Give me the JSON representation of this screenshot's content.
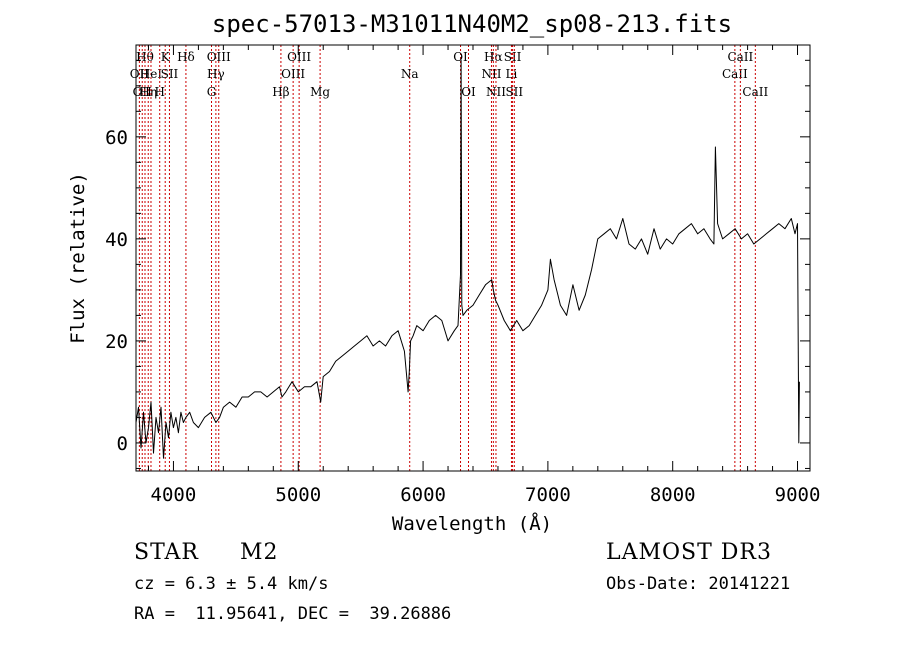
{
  "chart_data": {
    "type": "line",
    "title": "spec-57013-M31011N40M2_sp08-213.fits",
    "xlabel": "Wavelength (Å)",
    "ylabel": "Flux (relative)",
    "xlim": [
      3700,
      9100
    ],
    "ylim": [
      -5.5,
      78
    ],
    "xticks": [
      4000,
      5000,
      6000,
      7000,
      8000,
      9000
    ],
    "yticks": [
      0,
      20,
      40,
      60
    ],
    "series": [
      {
        "name": "flux",
        "x": [
          3700,
          3720,
          3740,
          3760,
          3780,
          3800,
          3820,
          3840,
          3860,
          3880,
          3900,
          3920,
          3940,
          3960,
          3980,
          4000,
          4020,
          4040,
          4060,
          4080,
          4100,
          4130,
          4160,
          4200,
          4250,
          4300,
          4340,
          4370,
          4400,
          4450,
          4500,
          4550,
          4600,
          4650,
          4700,
          4750,
          4800,
          4850,
          4870,
          4900,
          4950,
          5000,
          5050,
          5100,
          5150,
          5180,
          5200,
          5250,
          5300,
          5350,
          5400,
          5450,
          5500,
          5550,
          5600,
          5650,
          5700,
          5750,
          5800,
          5850,
          5880,
          5890,
          5900,
          5920,
          5950,
          6000,
          6050,
          6100,
          6150,
          6200,
          6250,
          6280,
          6300,
          6305,
          6310,
          6320,
          6350,
          6400,
          6450,
          6500,
          6550,
          6563,
          6580,
          6600,
          6650,
          6700,
          6750,
          6800,
          6850,
          6900,
          6950,
          7000,
          7020,
          7050,
          7080,
          7100,
          7150,
          7200,
          7250,
          7300,
          7350,
          7400,
          7450,
          7500,
          7550,
          7600,
          7650,
          7700,
          7750,
          7800,
          7850,
          7900,
          7950,
          8000,
          8050,
          8100,
          8150,
          8200,
          8250,
          8300,
          8330,
          8342,
          8360,
          8400,
          8450,
          8500,
          8550,
          8600,
          8650,
          8700,
          8750,
          8800,
          8850,
          8900,
          8950,
          8980,
          9000,
          9010,
          9015
        ],
        "values": [
          4,
          7,
          -1,
          6,
          0,
          3,
          8,
          -2,
          5,
          2,
          7,
          -3,
          4,
          1,
          6,
          3,
          5,
          2,
          6,
          4,
          5,
          6,
          4,
          3,
          5,
          6,
          4,
          5,
          7,
          8,
          7,
          9,
          9,
          10,
          10,
          9,
          10,
          11,
          9,
          10,
          12,
          10,
          11,
          11,
          12,
          8,
          13,
          14,
          16,
          17,
          18,
          19,
          20,
          21,
          19,
          20,
          19,
          21,
          22,
          18,
          10,
          14,
          20,
          21,
          23,
          22,
          24,
          25,
          24,
          20,
          22,
          23,
          33,
          75,
          27,
          25,
          26,
          27,
          29,
          31,
          32,
          30,
          28,
          27,
          24,
          22,
          24,
          22,
          23,
          25,
          27,
          30,
          36,
          32,
          29,
          27,
          25,
          31,
          26,
          29,
          34,
          40,
          41,
          42,
          40,
          44,
          39,
          38,
          40,
          37,
          42,
          38,
          40,
          39,
          41,
          42,
          43,
          41,
          42,
          40,
          39,
          58,
          43,
          40,
          41,
          42,
          40,
          41,
          39,
          40,
          41,
          42,
          43,
          42,
          44,
          41,
          43,
          0,
          12
        ]
      }
    ],
    "line_markers": [
      {
        "wavelength": 3727,
        "label": "OII",
        "row": 2
      },
      {
        "wavelength": 3750,
        "label": "OII",
        "row": 3
      },
      {
        "wavelength": 3772,
        "label": "Hθ",
        "row": 1
      },
      {
        "wavelength": 3798,
        "label": "Hη",
        "row": 3
      },
      {
        "wavelength": 3820,
        "label": "HeI",
        "row": 2
      },
      {
        "wavelength": 3890,
        "label": "H",
        "row": 3
      },
      {
        "wavelength": 3934,
        "label": "K",
        "row": 1
      },
      {
        "wavelength": 3968,
        "label": "SII",
        "row": 2
      },
      {
        "wavelength": 4100,
        "label": "Hδ",
        "row": 1
      },
      {
        "wavelength": 4305,
        "label": "G",
        "row": 3
      },
      {
        "wavelength": 4340,
        "label": "Hγ",
        "row": 2
      },
      {
        "wavelength": 4363,
        "label": "OIII",
        "row": 1
      },
      {
        "wavelength": 4861,
        "label": "Hβ",
        "row": 3
      },
      {
        "wavelength": 4959,
        "label": "OIII",
        "row": 2
      },
      {
        "wavelength": 5007,
        "label": "OIII",
        "row": 1
      },
      {
        "wavelength": 5175,
        "label": "Mg",
        "row": 3
      },
      {
        "wavelength": 5893,
        "label": "Na",
        "row": 2
      },
      {
        "wavelength": 6300,
        "label": "OI",
        "row": 1
      },
      {
        "wavelength": 6364,
        "label": "OI",
        "row": 3
      },
      {
        "wavelength": 6548,
        "label": "NII",
        "row": 2
      },
      {
        "wavelength": 6563,
        "label": "Hα",
        "row": 1
      },
      {
        "wavelength": 6584,
        "label": "NII",
        "row": 3
      },
      {
        "wavelength": 6708,
        "label": "Li",
        "row": 2
      },
      {
        "wavelength": 6717,
        "label": "SII",
        "row": 1
      },
      {
        "wavelength": 6731,
        "label": "SII",
        "row": 3
      },
      {
        "wavelength": 8498,
        "label": "CaII",
        "row": 2
      },
      {
        "wavelength": 8542,
        "label": "CaII",
        "row": 1
      },
      {
        "wavelength": 8662,
        "label": "CaII",
        "row": 3
      }
    ]
  },
  "footer": {
    "object_class": "STAR",
    "subclass": "M2",
    "survey": "LAMOST DR3",
    "redshift_line": "cz = 6.3 ± 5.4 km/s",
    "obs_date": "Obs-Date: 20141221",
    "coords_line": "RA =  11.95641, DEC =  39.26886"
  },
  "colors": {
    "spectrum": "#000000",
    "line_marker": "#cc0000",
    "axis": "#000000"
  }
}
